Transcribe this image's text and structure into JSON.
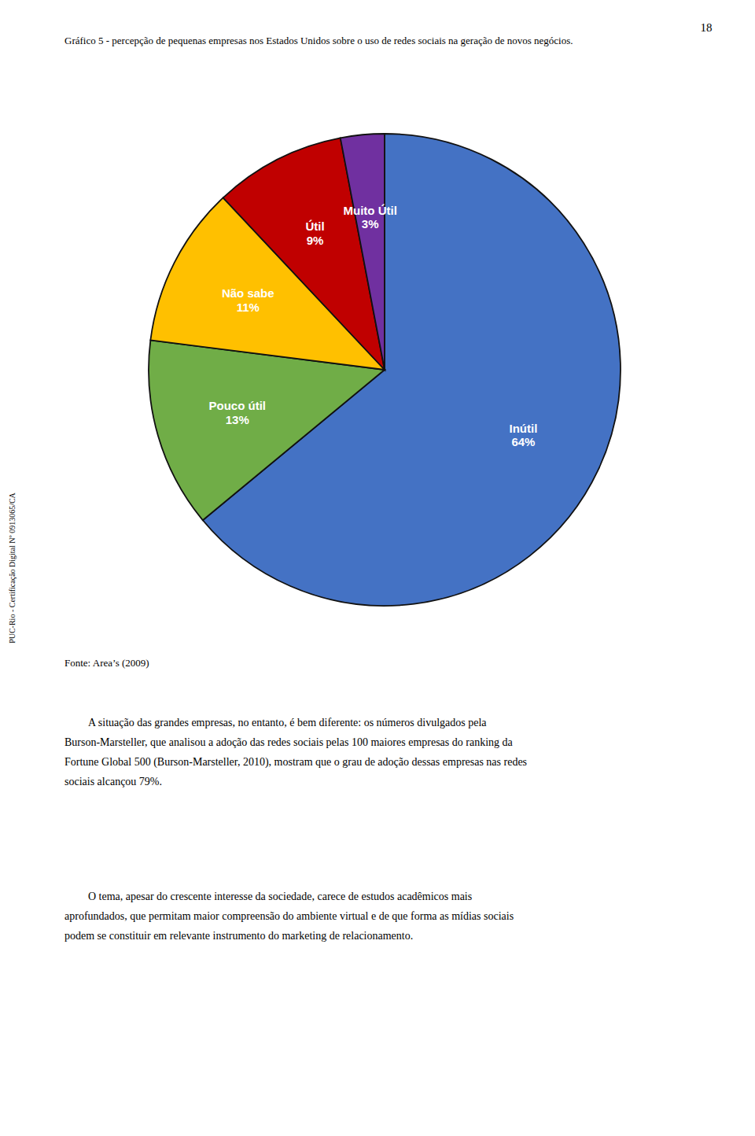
{
  "chart_data": {
    "type": "pie",
    "title": "Gráfico 5 - percepção de pequenas empresas nos Estados Unidos sobre o uso de redes sociais na geração de novos negócios.",
    "categories": [
      "Inútil",
      "Pouco útil",
      "Não sabe",
      "Útil",
      "Muito Útil"
    ],
    "values": [
      64,
      13,
      11,
      9,
      3
    ],
    "value_labels": [
      "64%",
      "13%",
      "11%",
      "9%",
      "3%"
    ],
    "colors": [
      "#4472C4",
      "#70AD47",
      "#FFC000",
      "#C00000",
      "#7030A0"
    ],
    "data_labels": true,
    "annotations": [
      "18",
      "PUC-Rio - Certificação Digital Nº 0913065/CA",
      "Fonte: Area’s (2009)",
      "A situação das grandes empresas, no entanto, é bem diferente: os números divulgados pela Burson-Marsteller, que analisou a adoção das redes sociais pelas 100 maiores empresas do ranking da Fortune Global 500 (Burson-Marsteller, 2010), mostram que o grau de adoção dessas empresas nas redes sociais alcançou 79%.",
      "O tema, apesar do crescente interesse da sociedade, carece de estudos acadêmicos mais aprofundados, que permitam maior compreensão do ambiente virtual e de que forma as mídias sociais podem se constituir em relevante instrumento do marketing de relacionamento."
    ]
  }
}
